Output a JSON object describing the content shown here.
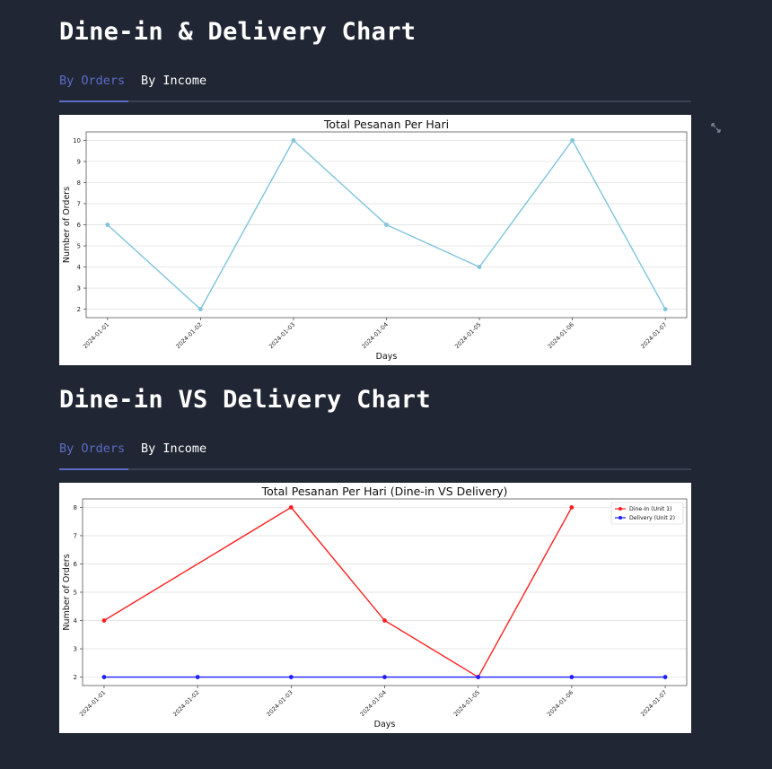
{
  "sections": [
    {
      "title": "Dine-in & Delivery Chart",
      "tabs": [
        {
          "label": "By Orders",
          "active": true
        },
        {
          "label": "By Income",
          "active": false
        }
      ]
    },
    {
      "title": "Dine-in VS Delivery Chart",
      "tabs": [
        {
          "label": "By Orders",
          "active": true
        },
        {
          "label": "By Income",
          "active": false
        }
      ]
    }
  ],
  "colors": {
    "background": "#202633",
    "tab_active": "#5b6cc7",
    "line1": "#7fc4dc",
    "dine_in": "#ff2020",
    "delivery": "#1f1fff"
  },
  "chart_data": [
    {
      "type": "line",
      "title": "Total Pesanan Per Hari",
      "xlabel": "Days",
      "ylabel": "Number of Orders",
      "x": [
        "2024-01-01",
        "2024-01-02",
        "2024-01-03",
        "2024-01-04",
        "2024-01-05",
        "2024-01-06",
        "2024-01-07"
      ],
      "yticks": [
        "2",
        "3",
        "4",
        "5",
        "6",
        "7",
        "8",
        "9",
        "10"
      ],
      "ylim": [
        1.6,
        10.4
      ],
      "grid": true,
      "series": [
        {
          "values": [
            6,
            2,
            10,
            6,
            4,
            10,
            2
          ],
          "color": "#7fc4dc"
        }
      ]
    },
    {
      "type": "line",
      "title": "Total Pesanan Per Hari (Dine-in VS Delivery)",
      "xlabel": "Days",
      "ylabel": "Number of Orders",
      "x": [
        "2024-01-01",
        "2024-01-02",
        "2024-01-03",
        "2024-01-04",
        "2024-01-05",
        "2024-01-06",
        "2024-01-07"
      ],
      "yticks": [
        "2",
        "3",
        "4",
        "5",
        "6",
        "7",
        "8"
      ],
      "ylim": [
        1.7,
        8.3
      ],
      "grid": true,
      "legend": "top-right",
      "series": [
        {
          "name": "Dine-In (Unit 1)",
          "values": [
            4,
            null,
            8,
            4,
            2,
            8,
            null
          ],
          "color": "#ff2020"
        },
        {
          "name": "Delivery (Unit 2)",
          "values": [
            2,
            2,
            2,
            2,
            2,
            2,
            2
          ],
          "color": "#1f1fff"
        }
      ]
    }
  ]
}
